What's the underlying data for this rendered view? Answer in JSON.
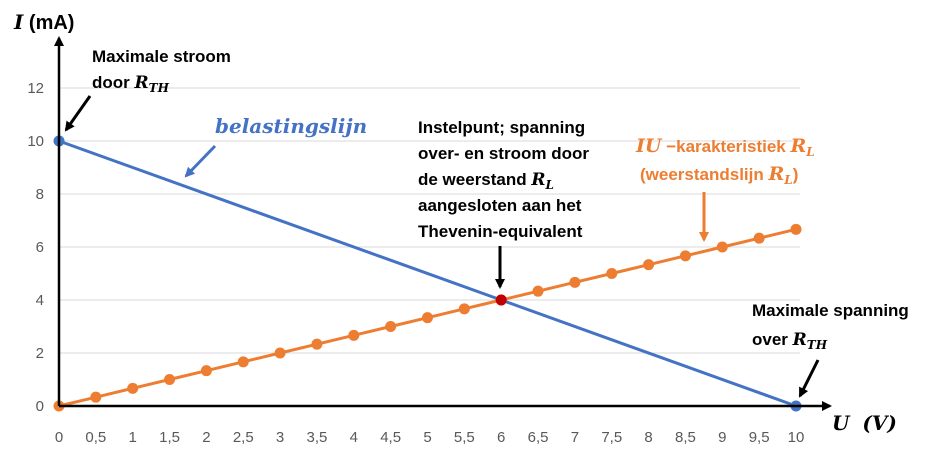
{
  "chart_data": {
    "type": "line",
    "x_ticks": [
      "0",
      "0,5",
      "1",
      "1,5",
      "2",
      "2,5",
      "3",
      "3,5",
      "4",
      "4,5",
      "5",
      "5,5",
      "6",
      "6,5",
      "7",
      "7,5",
      "8",
      "8,5",
      "9",
      "9,5",
      "10"
    ],
    "y_ticks": [
      "0",
      "2",
      "4",
      "6",
      "8",
      "10",
      "12"
    ],
    "xlim": [
      0,
      10
    ],
    "ylim": [
      0,
      12
    ],
    "grid": "horizontal",
    "axis_labels": {
      "y_main": "I",
      "y_unit": " (mA)",
      "x_main": "U",
      "x_unit": "(V)"
    },
    "series": [
      {
        "name": "belastingslijn",
        "color": "#4472C4",
        "points": [
          [
            0,
            10
          ],
          [
            10,
            0
          ]
        ]
      },
      {
        "name": "IU −karakteristiek R_L",
        "color": "#ED7D31",
        "marker_color": "#ED7D31",
        "points": [
          [
            0,
            0
          ],
          [
            0.5,
            0.333
          ],
          [
            1,
            0.667
          ],
          [
            1.5,
            1
          ],
          [
            2,
            1.333
          ],
          [
            2.5,
            1.667
          ],
          [
            3,
            2
          ],
          [
            3.5,
            2.333
          ],
          [
            4,
            2.667
          ],
          [
            4.5,
            3
          ],
          [
            5,
            3.333
          ],
          [
            5.5,
            3.667
          ],
          [
            6,
            4
          ],
          [
            6.5,
            4.333
          ],
          [
            7,
            4.667
          ],
          [
            7.5,
            5
          ],
          [
            8,
            5.333
          ],
          [
            8.5,
            5.667
          ],
          [
            9,
            6
          ],
          [
            9.5,
            6.333
          ],
          [
            10,
            6.667
          ]
        ]
      }
    ],
    "operating_point": {
      "x": 6,
      "y": 4,
      "color": "#C00000"
    },
    "annotations": {
      "max_current_line1": "Maximale stroom",
      "max_current_line2": "door ",
      "max_current_sym": "R",
      "max_current_sub": "TH",
      "load_line_label": "belastingslijn",
      "instel_lines": [
        "Instelpunt; spanning",
        "over- en stroom door",
        "de weerstand "
      ],
      "instel_sym": "R",
      "instel_sub": "L",
      "instel_lines_b": [
        "aangesloten aan het",
        "Thevenin-equivalent"
      ],
      "iu_sym": "IU",
      "iu_text": " −karakteristiek ",
      "iu_r": "R",
      "iu_sub": "L",
      "weerstand_text": "(weerstandslijn ",
      "weerstand_r": "R",
      "weerstand_sub": "L",
      "weerstand_close": ")",
      "max_voltage_line1": "Maximale spanning",
      "max_voltage_line2": "over  ",
      "max_voltage_sym": "R",
      "max_voltage_sub": "TH"
    }
  }
}
